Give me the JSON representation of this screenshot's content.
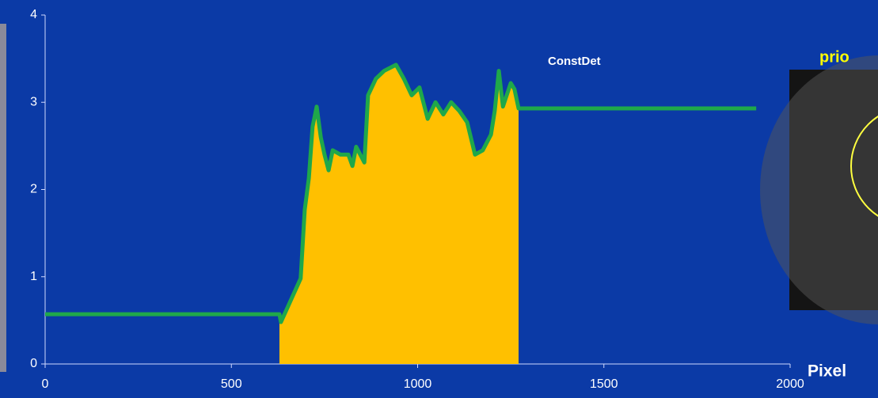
{
  "chart_data": {
    "type": "line",
    "x": [
      0,
      629,
      633,
      686,
      697,
      708,
      718,
      729,
      740,
      750,
      761,
      772,
      793,
      814,
      825,
      835,
      857,
      867,
      888,
      910,
      942,
      963,
      984,
      1005,
      1027,
      1048,
      1069,
      1090,
      1112,
      1133,
      1154,
      1175,
      1197,
      1207,
      1218,
      1229,
      1250,
      1260,
      1271,
      1909
    ],
    "series": [
      {
        "color": "#1fa84a",
        "values": [
          0.57,
          0.57,
          0.48,
          0.98,
          1.77,
          2.13,
          2.72,
          2.95,
          2.6,
          2.4,
          2.22,
          2.45,
          2.4,
          2.4,
          2.27,
          2.49,
          2.31,
          3.08,
          3.27,
          3.36,
          3.43,
          3.27,
          3.08,
          3.17,
          2.81,
          3.0,
          2.86,
          3.0,
          2.9,
          2.77,
          2.4,
          2.45,
          2.63,
          2.9,
          3.36,
          2.95,
          3.22,
          3.15,
          2.93,
          2.93
        ]
      }
    ],
    "fill_range": [
      629,
      1271
    ],
    "fill_color": "#ffc000",
    "xlim": [
      0,
      2000
    ],
    "xticks": [
      0,
      500,
      1000,
      1500,
      2000
    ],
    "ylim": [
      0,
      4
    ],
    "yticks": [
      0,
      1,
      2,
      3,
      4
    ],
    "annotations": [
      "ConstDet",
      "prio",
      "Pixel"
    ]
  }
}
